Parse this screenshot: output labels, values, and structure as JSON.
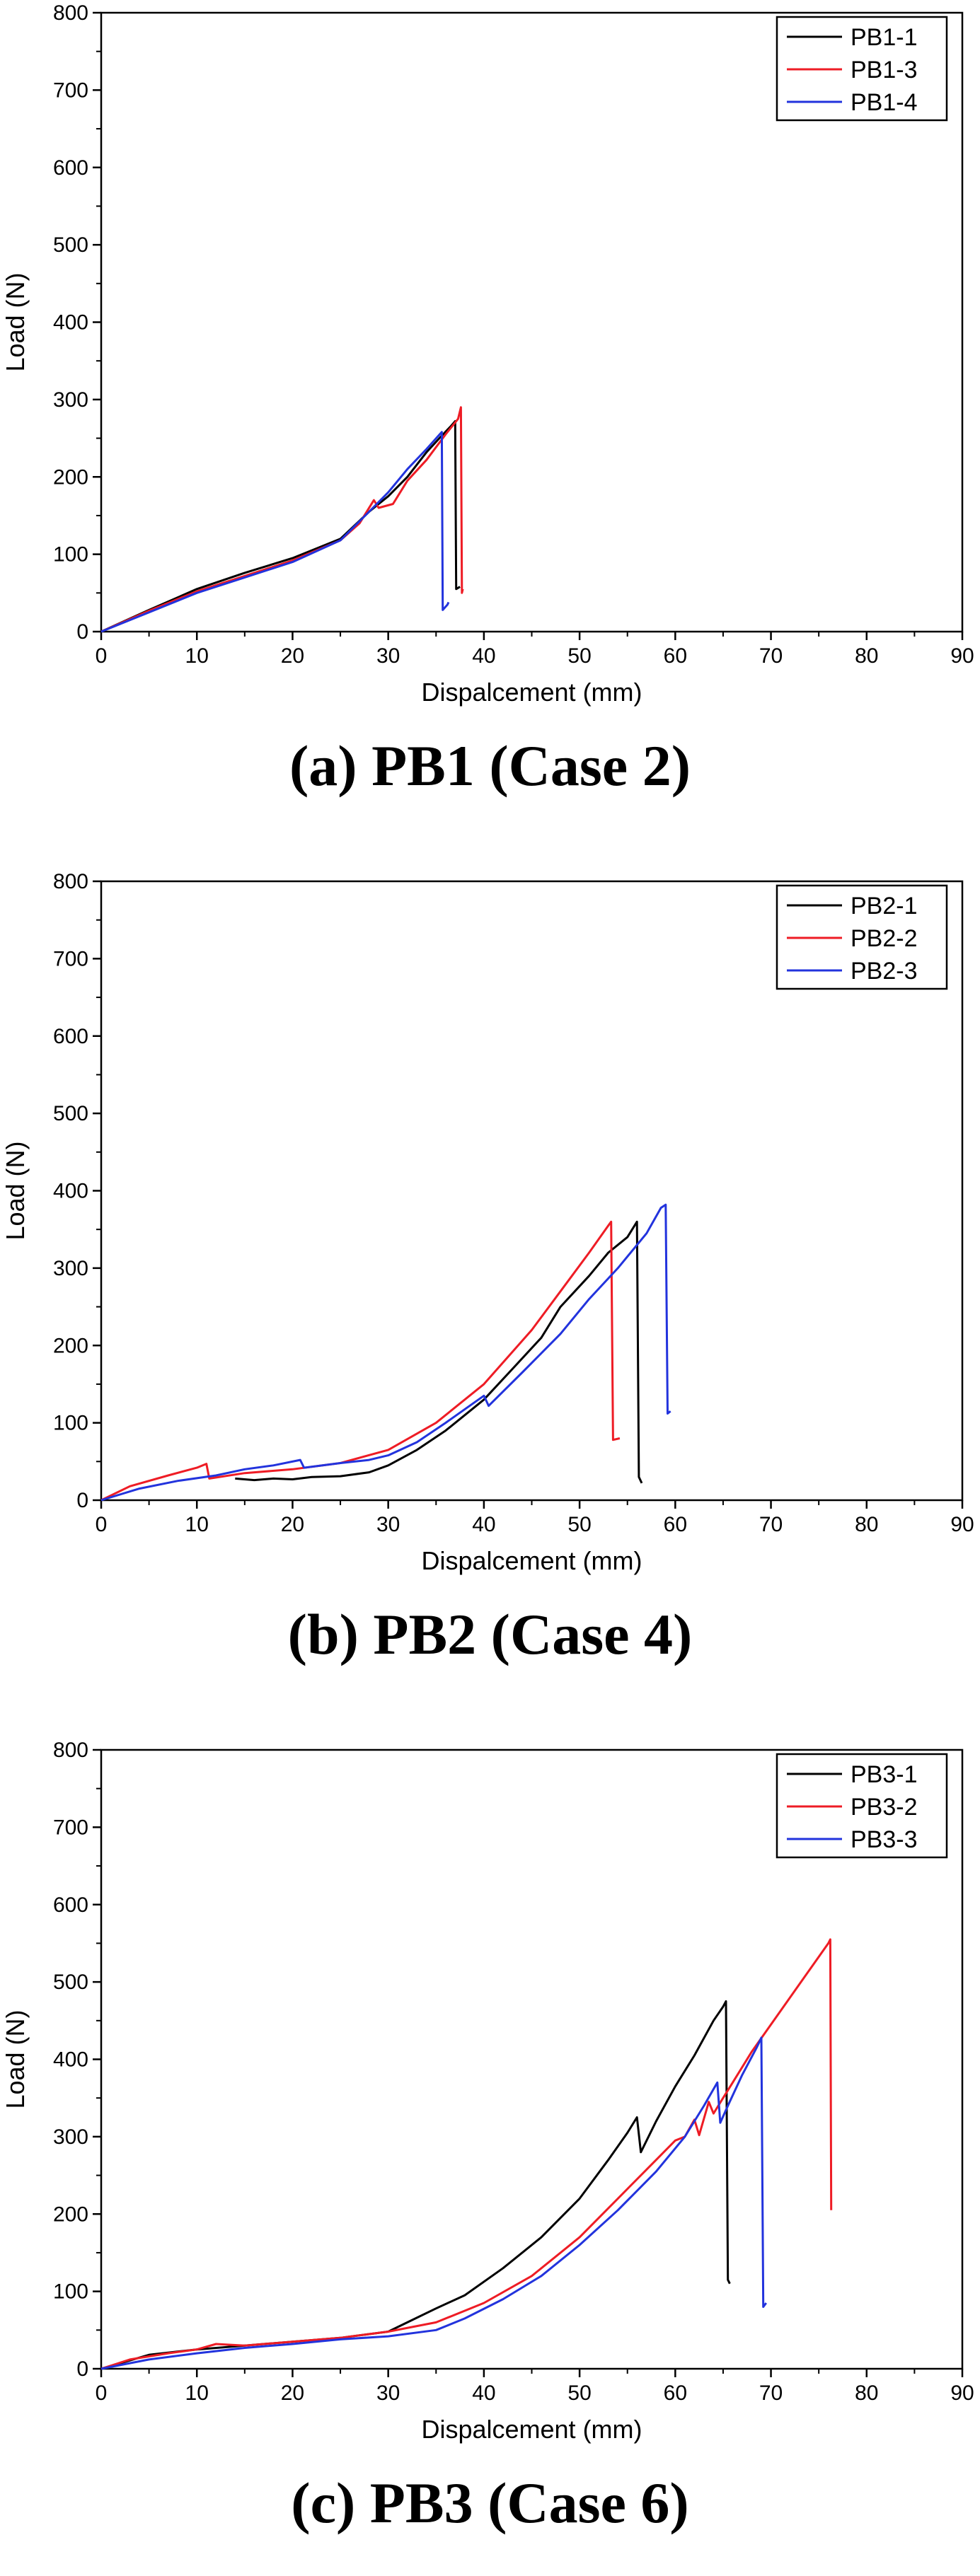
{
  "chart_data": [
    {
      "type": "line",
      "caption": "(a) PB1 (Case 2)",
      "xlabel": "Dispalcement (mm)",
      "ylabel": "Load (N)",
      "xlim": [
        0,
        90
      ],
      "ylim": [
        0,
        800
      ],
      "xticks": [
        0,
        10,
        20,
        30,
        40,
        50,
        60,
        70,
        80,
        90
      ],
      "yticks": [
        0,
        100,
        200,
        300,
        400,
        500,
        600,
        700,
        800
      ],
      "grid": false,
      "legend": "top-right",
      "series": [
        {
          "name": "PB1-1",
          "color": "#000000",
          "points": [
            [
              0,
              0
            ],
            [
              5,
              28
            ],
            [
              10,
              55
            ],
            [
              15,
              76
            ],
            [
              20,
              95
            ],
            [
              25,
              120
            ],
            [
              28,
              155
            ],
            [
              30,
              175
            ],
            [
              32,
              200
            ],
            [
              34,
              232
            ],
            [
              35.5,
              252
            ],
            [
              36.5,
              265
            ],
            [
              37,
              272
            ],
            [
              37.1,
              55
            ],
            [
              37.5,
              58
            ]
          ]
        },
        {
          "name": "PB1-3",
          "color": "#ee1c25",
          "points": [
            [
              0,
              0
            ],
            [
              5,
              27
            ],
            [
              10,
              52
            ],
            [
              15,
              72
            ],
            [
              20,
              92
            ],
            [
              25,
              118
            ],
            [
              27,
              140
            ],
            [
              28.5,
              170
            ],
            [
              29,
              160
            ],
            [
              30.5,
              165
            ],
            [
              32,
              195
            ],
            [
              34,
              222
            ],
            [
              36,
              255
            ],
            [
              37.3,
              275
            ],
            [
              37.6,
              290
            ],
            [
              37.7,
              50
            ],
            [
              37.8,
              55
            ]
          ]
        },
        {
          "name": "PB1-4",
          "color": "#2233dd",
          "points": [
            [
              0,
              0
            ],
            [
              5,
              25
            ],
            [
              10,
              50
            ],
            [
              15,
              70
            ],
            [
              20,
              90
            ],
            [
              25,
              118
            ],
            [
              28,
              155
            ],
            [
              30,
              180
            ],
            [
              32,
              210
            ],
            [
              34,
              236
            ],
            [
              35.6,
              258
            ],
            [
              35.7,
              28
            ],
            [
              36.2,
              35
            ],
            [
              36.3,
              38
            ]
          ]
        }
      ]
    },
    {
      "type": "line",
      "caption": "(b) PB2 (Case 4)",
      "xlabel": "Dispalcement (mm)",
      "ylabel": "Load (N)",
      "xlim": [
        0,
        90
      ],
      "ylim": [
        0,
        800
      ],
      "xticks": [
        0,
        10,
        20,
        30,
        40,
        50,
        60,
        70,
        80,
        90
      ],
      "yticks": [
        0,
        100,
        200,
        300,
        400,
        500,
        600,
        700,
        800
      ],
      "grid": false,
      "legend": "top-right",
      "series": [
        {
          "name": "PB2-1",
          "color": "#000000",
          "points": [
            [
              14,
              28
            ],
            [
              16,
              26
            ],
            [
              18,
              28
            ],
            [
              20,
              27
            ],
            [
              22,
              30
            ],
            [
              25,
              31
            ],
            [
              28,
              36
            ],
            [
              30,
              45
            ],
            [
              33,
              65
            ],
            [
              36,
              90
            ],
            [
              40,
              130
            ],
            [
              43,
              170
            ],
            [
              46,
              210
            ],
            [
              48,
              250
            ],
            [
              51,
              290
            ],
            [
              53,
              320
            ],
            [
              54,
              330
            ],
            [
              55,
              340
            ],
            [
              56,
              360
            ],
            [
              56.2,
              30
            ],
            [
              56.5,
              22
            ]
          ]
        },
        {
          "name": "PB2-2",
          "color": "#ee1c25",
          "points": [
            [
              0,
              0
            ],
            [
              3,
              18
            ],
            [
              7,
              32
            ],
            [
              10,
              42
            ],
            [
              11,
              47
            ],
            [
              11.3,
              28
            ],
            [
              15,
              35
            ],
            [
              20,
              40
            ],
            [
              25,
              48
            ],
            [
              30,
              65
            ],
            [
              35,
              100
            ],
            [
              40,
              150
            ],
            [
              45,
              220
            ],
            [
              48,
              270
            ],
            [
              51,
              320
            ],
            [
              53,
              355
            ],
            [
              53.3,
              360
            ],
            [
              53.5,
              78
            ],
            [
              54.2,
              80
            ]
          ]
        },
        {
          "name": "PB2-3",
          "color": "#2233dd",
          "points": [
            [
              0,
              0
            ],
            [
              4,
              15
            ],
            [
              8,
              25
            ],
            [
              12,
              32
            ],
            [
              15,
              40
            ],
            [
              18,
              45
            ],
            [
              20.8,
              52
            ],
            [
              21.2,
              42
            ],
            [
              25,
              48
            ],
            [
              28,
              52
            ],
            [
              30,
              58
            ],
            [
              33,
              75
            ],
            [
              36,
              100
            ],
            [
              40,
              135
            ],
            [
              40.5,
              122
            ],
            [
              44,
              165
            ],
            [
              48,
              215
            ],
            [
              51,
              260
            ],
            [
              54,
              300
            ],
            [
              57,
              345
            ],
            [
              58.5,
              378
            ],
            [
              59,
              382
            ],
            [
              59.2,
              112
            ],
            [
              59.5,
              115
            ]
          ]
        }
      ]
    },
    {
      "type": "line",
      "caption": "(c) PB3 (Case 6)",
      "xlabel": "Dispalcement (mm)",
      "ylabel": "Load (N)",
      "xlim": [
        0,
        90
      ],
      "ylim": [
        0,
        800
      ],
      "xticks": [
        0,
        10,
        20,
        30,
        40,
        50,
        60,
        70,
        80,
        90
      ],
      "yticks": [
        0,
        100,
        200,
        300,
        400,
        500,
        600,
        700,
        800
      ],
      "grid": false,
      "legend": "top-right",
      "series": [
        {
          "name": "PB3-1",
          "color": "#000000",
          "points": [
            [
              0,
              0
            ],
            [
              5,
              18
            ],
            [
              10,
              25
            ],
            [
              15,
              30
            ],
            [
              20,
              35
            ],
            [
              25,
              40
            ],
            [
              30,
              48
            ],
            [
              32,
              60
            ],
            [
              35,
              78
            ],
            [
              38,
              95
            ],
            [
              42,
              130
            ],
            [
              46,
              170
            ],
            [
              50,
              220
            ],
            [
              53,
              270
            ],
            [
              55,
              305
            ],
            [
              56,
              325
            ],
            [
              56.4,
              280
            ],
            [
              58,
              320
            ],
            [
              60,
              365
            ],
            [
              62,
              405
            ],
            [
              64,
              450
            ],
            [
              65,
              468
            ],
            [
              65.3,
              475
            ],
            [
              65.5,
              115
            ],
            [
              65.7,
              110
            ]
          ]
        },
        {
          "name": "PB3-2",
          "color": "#ee1c25",
          "points": [
            [
              0,
              0
            ],
            [
              3,
              12
            ],
            [
              7,
              20
            ],
            [
              10,
              25
            ],
            [
              12,
              32
            ],
            [
              15,
              30
            ],
            [
              20,
              35
            ],
            [
              25,
              40
            ],
            [
              30,
              48
            ],
            [
              35,
              60
            ],
            [
              40,
              85
            ],
            [
              45,
              120
            ],
            [
              50,
              170
            ],
            [
              54,
              220
            ],
            [
              58,
              270
            ],
            [
              60,
              295
            ],
            [
              61,
              300
            ],
            [
              62,
              322
            ],
            [
              62.5,
              302
            ],
            [
              63.5,
              345
            ],
            [
              64,
              330
            ],
            [
              65,
              350
            ],
            [
              66,
              370
            ],
            [
              68,
              410
            ],
            [
              70,
              445
            ],
            [
              72,
              480
            ],
            [
              74,
              515
            ],
            [
              76,
              550
            ],
            [
              76.2,
              555
            ],
            [
              76.3,
              205
            ]
          ]
        },
        {
          "name": "PB3-3",
          "color": "#2233dd",
          "points": [
            [
              0,
              0
            ],
            [
              5,
              12
            ],
            [
              10,
              20
            ],
            [
              15,
              27
            ],
            [
              20,
              32
            ],
            [
              25,
              38
            ],
            [
              30,
              42
            ],
            [
              35,
              50
            ],
            [
              38,
              65
            ],
            [
              42,
              90
            ],
            [
              46,
              120
            ],
            [
              50,
              160
            ],
            [
              54,
              205
            ],
            [
              58,
              255
            ],
            [
              61,
              300
            ],
            [
              63,
              340
            ],
            [
              64.4,
              370
            ],
            [
              64.7,
              318
            ],
            [
              65.5,
              340
            ],
            [
              67,
              380
            ],
            [
              68.5,
              415
            ],
            [
              69,
              428
            ],
            [
              69.2,
              80
            ],
            [
              69.5,
              85
            ]
          ]
        }
      ]
    }
  ]
}
